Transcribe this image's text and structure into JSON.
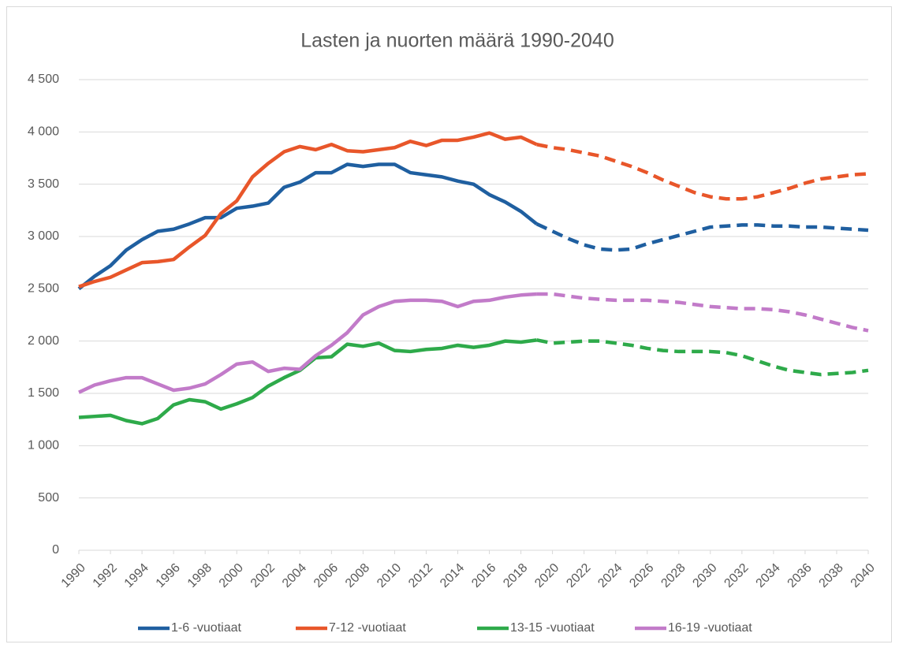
{
  "chart_data": {
    "type": "line",
    "title": "Lasten ja nuorten määrä 1990-2040",
    "x": [
      1990,
      1991,
      1992,
      1993,
      1994,
      1995,
      1996,
      1997,
      1998,
      1999,
      2000,
      2001,
      2002,
      2003,
      2004,
      2005,
      2006,
      2007,
      2008,
      2009,
      2010,
      2011,
      2012,
      2013,
      2014,
      2015,
      2016,
      2017,
      2018,
      2019,
      2020,
      2021,
      2022,
      2023,
      2024,
      2025,
      2026,
      2027,
      2028,
      2029,
      2030,
      2031,
      2032,
      2033,
      2034,
      2035,
      2036,
      2037,
      2038,
      2039,
      2040
    ],
    "series": [
      {
        "name": "1-6 -vuotiaat",
        "color": "#1f5fa0",
        "values": [
          2500,
          2620,
          2720,
          2870,
          2970,
          3050,
          3070,
          3120,
          3180,
          3180,
          3270,
          3290,
          3320,
          3470,
          3520,
          3610,
          3610,
          3690,
          3670,
          3690,
          3690,
          3610,
          3590,
          3570,
          3530,
          3500,
          3400,
          3330,
          3240,
          3120,
          3050,
          2980,
          2920,
          2880,
          2870,
          2880,
          2930,
          2970,
          3010,
          3050,
          3090,
          3100,
          3110,
          3110,
          3100,
          3100,
          3090,
          3090,
          3080,
          3070,
          3060
        ]
      },
      {
        "name": "7-12 -vuotiaat",
        "color": "#e8562a",
        "values": [
          2520,
          2570,
          2610,
          2680,
          2750,
          2760,
          2780,
          2900,
          3010,
          3220,
          3340,
          3570,
          3700,
          3810,
          3860,
          3830,
          3880,
          3820,
          3810,
          3830,
          3850,
          3910,
          3870,
          3920,
          3920,
          3950,
          3990,
          3930,
          3950,
          3880,
          3850,
          3830,
          3800,
          3770,
          3720,
          3670,
          3610,
          3540,
          3480,
          3420,
          3380,
          3360,
          3360,
          3380,
          3420,
          3460,
          3510,
          3550,
          3570,
          3590,
          3600
        ]
      },
      {
        "name": "13-15 -vuotiaat",
        "color": "#2eaa4a",
        "values": [
          1270,
          1280,
          1290,
          1240,
          1210,
          1260,
          1390,
          1440,
          1420,
          1350,
          1400,
          1460,
          1570,
          1650,
          1720,
          1840,
          1850,
          1970,
          1950,
          1980,
          1910,
          1900,
          1920,
          1930,
          1960,
          1940,
          1960,
          2000,
          1990,
          2010,
          1980,
          1990,
          2000,
          2000,
          1980,
          1960,
          1930,
          1910,
          1900,
          1900,
          1900,
          1890,
          1860,
          1810,
          1760,
          1720,
          1700,
          1680,
          1690,
          1700,
          1720
        ]
      },
      {
        "name": "16-19 -vuotiaat",
        "color": "#c27bc9",
        "values": [
          1510,
          1580,
          1620,
          1650,
          1650,
          1590,
          1530,
          1550,
          1590,
          1680,
          1780,
          1800,
          1710,
          1740,
          1730,
          1860,
          1960,
          2080,
          2250,
          2330,
          2380,
          2390,
          2390,
          2380,
          2330,
          2380,
          2390,
          2420,
          2440,
          2450,
          2450,
          2430,
          2410,
          2400,
          2390,
          2390,
          2390,
          2380,
          2370,
          2350,
          2330,
          2320,
          2310,
          2310,
          2300,
          2280,
          2250,
          2210,
          2170,
          2130,
          2100
        ]
      }
    ],
    "dashed_from": 2019,
    "xlim": [
      1990,
      2040
    ],
    "xticks": [
      1990,
      1992,
      1994,
      1996,
      1998,
      2000,
      2002,
      2004,
      2006,
      2008,
      2010,
      2012,
      2014,
      2016,
      2018,
      2020,
      2022,
      2024,
      2026,
      2028,
      2030,
      2032,
      2034,
      2036,
      2038,
      2040
    ],
    "ylim": [
      0,
      4500
    ],
    "yticks": [
      0,
      500,
      {
        "value": 1000,
        "label": "1 000"
      },
      {
        "value": 1500,
        "label": "1 500"
      },
      {
        "value": 2000,
        "label": "2 000"
      },
      {
        "value": 2500,
        "label": "2 500"
      },
      {
        "value": 3000,
        "label": "3 000"
      },
      {
        "value": 3500,
        "label": "3 500"
      },
      {
        "value": 4000,
        "label": "4 000"
      },
      {
        "value": 4500,
        "label": "4 500"
      }
    ],
    "grid": true,
    "legend": "bottom"
  }
}
